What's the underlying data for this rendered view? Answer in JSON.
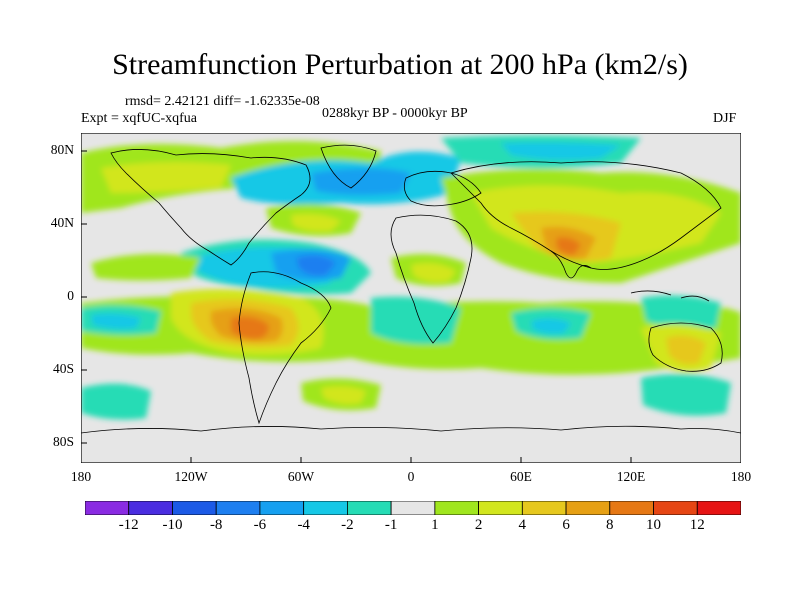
{
  "title": "Streamfunction Perturbation at 200 hPa (km2/s)",
  "stats": "rmsd= 2.42121 diff= -1.62335e-08",
  "experiment": "Expt = xqfUC-xqfua",
  "period": "0288kyr BP - 0000kyr BP",
  "season": "DJF",
  "y_axis": {
    "labels": [
      "80N",
      "40N",
      "0",
      "40S",
      "80S"
    ]
  },
  "x_axis": {
    "labels": [
      "180",
      "120W",
      "60W",
      "0",
      "60E",
      "120E",
      "180"
    ]
  },
  "colorbar": {
    "levels": [
      "-12",
      "-10",
      "-8",
      "-6",
      "-4",
      "-2",
      "-1",
      "1",
      "2",
      "4",
      "6",
      "8",
      "10",
      "12"
    ],
    "colors": [
      "#8a2be2",
      "#4a2de0",
      "#1c5ae6",
      "#1e7ff0",
      "#16a0f0",
      "#16c8e6",
      "#25dcb5",
      "#e6e6e6",
      "#a0e61e",
      "#d2e61e",
      "#e6c81e",
      "#e6a014",
      "#e67814",
      "#e64614",
      "#e61414"
    ]
  },
  "icons": {
    "field": "contour-fill",
    "coast": "coastline"
  }
}
